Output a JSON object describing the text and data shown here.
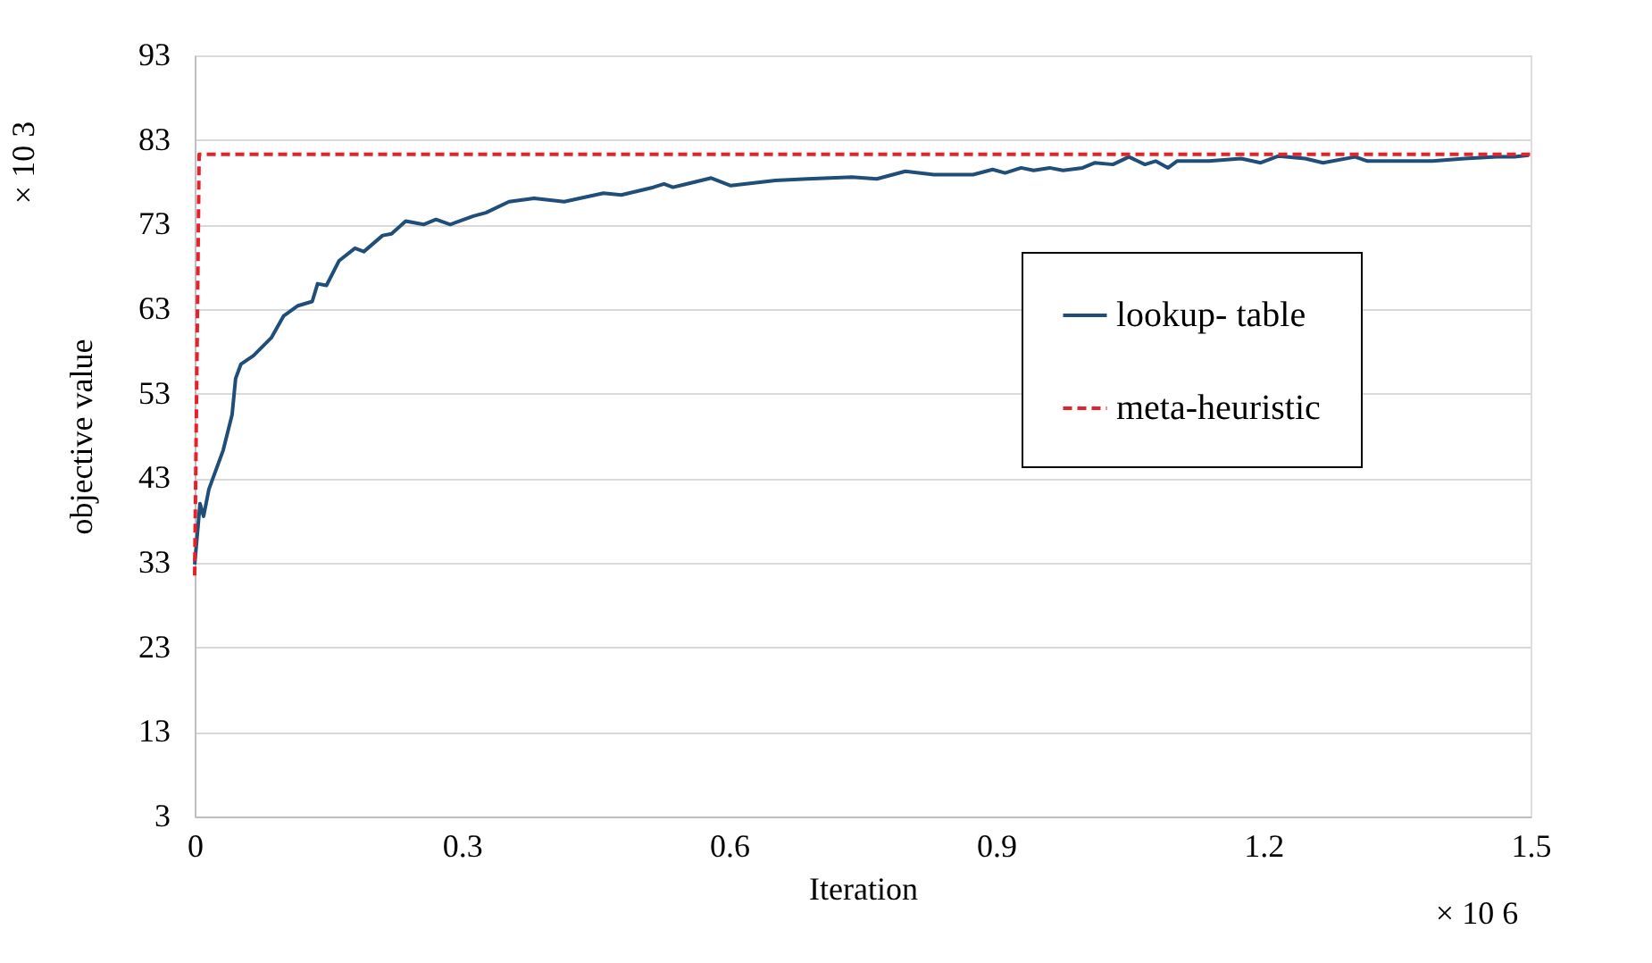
{
  "chart_data": {
    "type": "line",
    "xlabel": "Iteration",
    "ylabel": "objective value",
    "xlim": [
      0,
      1.5
    ],
    "xticks": [
      0,
      0.3,
      0.6,
      0.9,
      1.2,
      1.5
    ],
    "ylim": [
      3,
      93
    ],
    "yticks": [
      3,
      13,
      23,
      33,
      43,
      53,
      63,
      73,
      83,
      93
    ],
    "grid": "y",
    "legend": "right",
    "marker": "none",
    "annotations": [
      "× 10 3",
      "× 10 6"
    ],
    "series": [
      {
        "name": "lookup- table",
        "color": "#1f4e79",
        "line_style": "solid",
        "x": [
          0,
          0.006,
          0.01,
          0.016,
          0.032,
          0.042,
          0.046,
          0.052,
          0.066,
          0.086,
          0.1,
          0.116,
          0.132,
          0.138,
          0.148,
          0.162,
          0.18,
          0.19,
          0.211,
          0.221,
          0.237,
          0.257,
          0.271,
          0.287,
          0.313,
          0.327,
          0.353,
          0.381,
          0.415,
          0.459,
          0.479,
          0.515,
          0.527,
          0.537,
          0.58,
          0.602,
          0.652,
          0.688,
          0.738,
          0.766,
          0.798,
          0.83,
          0.874,
          0.896,
          0.91,
          0.928,
          0.942,
          0.96,
          0.975,
          0.997,
          1.011,
          1.031,
          1.049,
          1.067,
          1.079,
          1.093,
          1.103,
          1.139,
          1.175,
          1.197,
          1.217,
          1.247,
          1.267,
          1.303,
          1.317,
          1.354,
          1.39,
          1.426,
          1.462,
          1.482,
          1.498
        ],
        "values": [
          32.8,
          40,
          38.5,
          41.7,
          46.3,
          50.5,
          54.8,
          56.5,
          57.5,
          59.6,
          62.2,
          63.4,
          63.9,
          66,
          65.8,
          68.7,
          70.2,
          69.8,
          71.7,
          71.9,
          73.4,
          73,
          73.6,
          73,
          74,
          74.4,
          75.7,
          76.1,
          75.7,
          76.7,
          76.5,
          77.4,
          77.8,
          77.4,
          78.5,
          77.6,
          78.2,
          78.4,
          78.6,
          78.4,
          79.3,
          78.9,
          78.9,
          79.5,
          79.1,
          79.7,
          79.4,
          79.7,
          79.4,
          79.7,
          80.3,
          80.1,
          81,
          80.1,
          80.5,
          79.7,
          80.5,
          80.5,
          80.8,
          80.3,
          81.1,
          80.8,
          80.3,
          81,
          80.5,
          80.5,
          80.5,
          80.8,
          81,
          81,
          81.2
        ]
      },
      {
        "name": "meta-heuristic",
        "color": "#e8202a",
        "line_style": "dashed",
        "x": [
          0,
          0.005,
          1.5
        ],
        "values": [
          31.5,
          81.3,
          81.3
        ]
      }
    ]
  }
}
